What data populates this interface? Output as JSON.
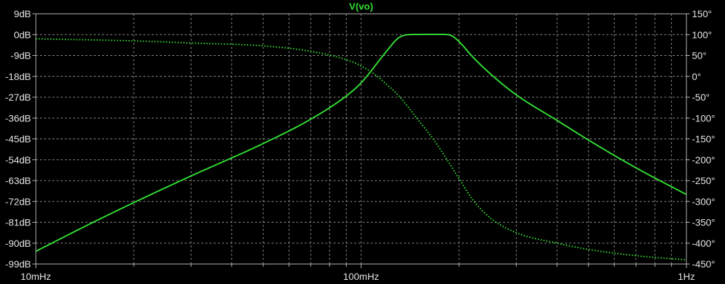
{
  "chart_data": {
    "type": "line",
    "title": "V(vo)",
    "x_scale": "log",
    "xlim": [
      "10mHz",
      "1Hz"
    ],
    "x_tick_labels": [
      "10mHz",
      "100mHz",
      "1Hz"
    ],
    "left_axis": {
      "unit": "dB",
      "ylim": [
        -99,
        9
      ],
      "tick_labels": [
        "9dB",
        "0dB",
        "-9dB",
        "-18dB",
        "-27dB",
        "-36dB",
        "-45dB",
        "-54dB",
        "-63dB",
        "-72dB",
        "-81dB",
        "-90dB",
        "-99dB"
      ]
    },
    "right_axis": {
      "unit": "°",
      "ylim": [
        -450,
        150
      ],
      "tick_labels": [
        "150°",
        "100°",
        "50°",
        "0°",
        "-50°",
        "-100°",
        "-150°",
        "-200°",
        "-250°",
        "-300°",
        "-350°",
        "-400°",
        "-450°"
      ]
    },
    "grid": true,
    "series": [
      {
        "axis": "left",
        "style": "solid",
        "color": "#33dd33",
        "x": [
          0.01,
          0.015,
          0.02,
          0.03,
          0.05,
          0.07,
          0.09,
          0.1,
          0.12,
          0.13,
          0.14,
          0.16,
          0.18,
          0.19,
          0.2,
          0.22,
          0.25,
          0.3,
          0.4,
          0.5,
          0.7,
          1.0
        ],
        "y": [
          -93.5,
          -81,
          -72.5,
          -61,
          -47,
          -36.5,
          -26.5,
          -20.8,
          -7,
          -1.5,
          0,
          0.1,
          0.1,
          -0.5,
          -3,
          -9.5,
          -17,
          -26,
          -37,
          -45.5,
          -57.5,
          -69
        ]
      },
      {
        "axis": "right",
        "style": "dotted",
        "color": "#33dd33",
        "x": [
          0.01,
          0.02,
          0.03,
          0.05,
          0.07,
          0.09,
          0.1,
          0.11,
          0.12,
          0.13,
          0.14,
          0.15,
          0.17,
          0.2,
          0.22,
          0.25,
          0.3,
          0.4,
          0.5,
          0.7,
          1.0
        ],
        "y": [
          90,
          85,
          80,
          73,
          60,
          40,
          25,
          5,
          -20,
          -45,
          -75,
          -105,
          -160,
          -245,
          -295,
          -340,
          -375,
          -400,
          -415,
          -430,
          -440
        ]
      }
    ]
  }
}
